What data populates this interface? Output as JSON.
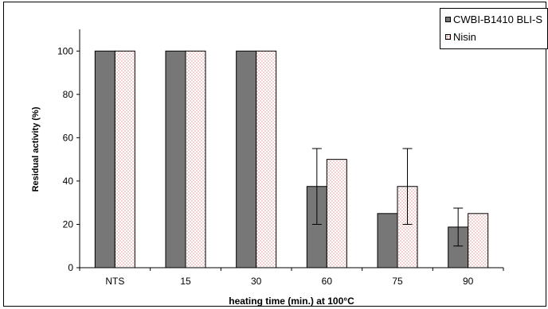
{
  "chart_data": {
    "type": "bar",
    "title": "",
    "xlabel": "heating time (min.) at 100°C",
    "ylabel": "Residual activity (%)",
    "categories": [
      "NTS",
      "15",
      "30",
      "60",
      "75",
      "90"
    ],
    "ylim": [
      0,
      110
    ],
    "yticks": [
      0,
      20,
      40,
      60,
      80,
      100
    ],
    "grid": false,
    "legend_position": "top-right",
    "series": [
      {
        "name": "CWBI-B1410 BLI-S",
        "color": "#777777",
        "values": [
          100,
          100,
          100,
          37.5,
          25,
          18.75
        ],
        "error": [
          null,
          null,
          null,
          [
            20,
            55
          ],
          null,
          [
            10,
            27.5
          ]
        ]
      },
      {
        "name": "Nisin",
        "color": "#ffffff",
        "pattern": "pink-dots",
        "values": [
          100,
          100,
          100,
          50,
          37.5,
          25
        ],
        "error": [
          null,
          null,
          null,
          null,
          [
            20,
            55
          ],
          null
        ]
      }
    ]
  }
}
